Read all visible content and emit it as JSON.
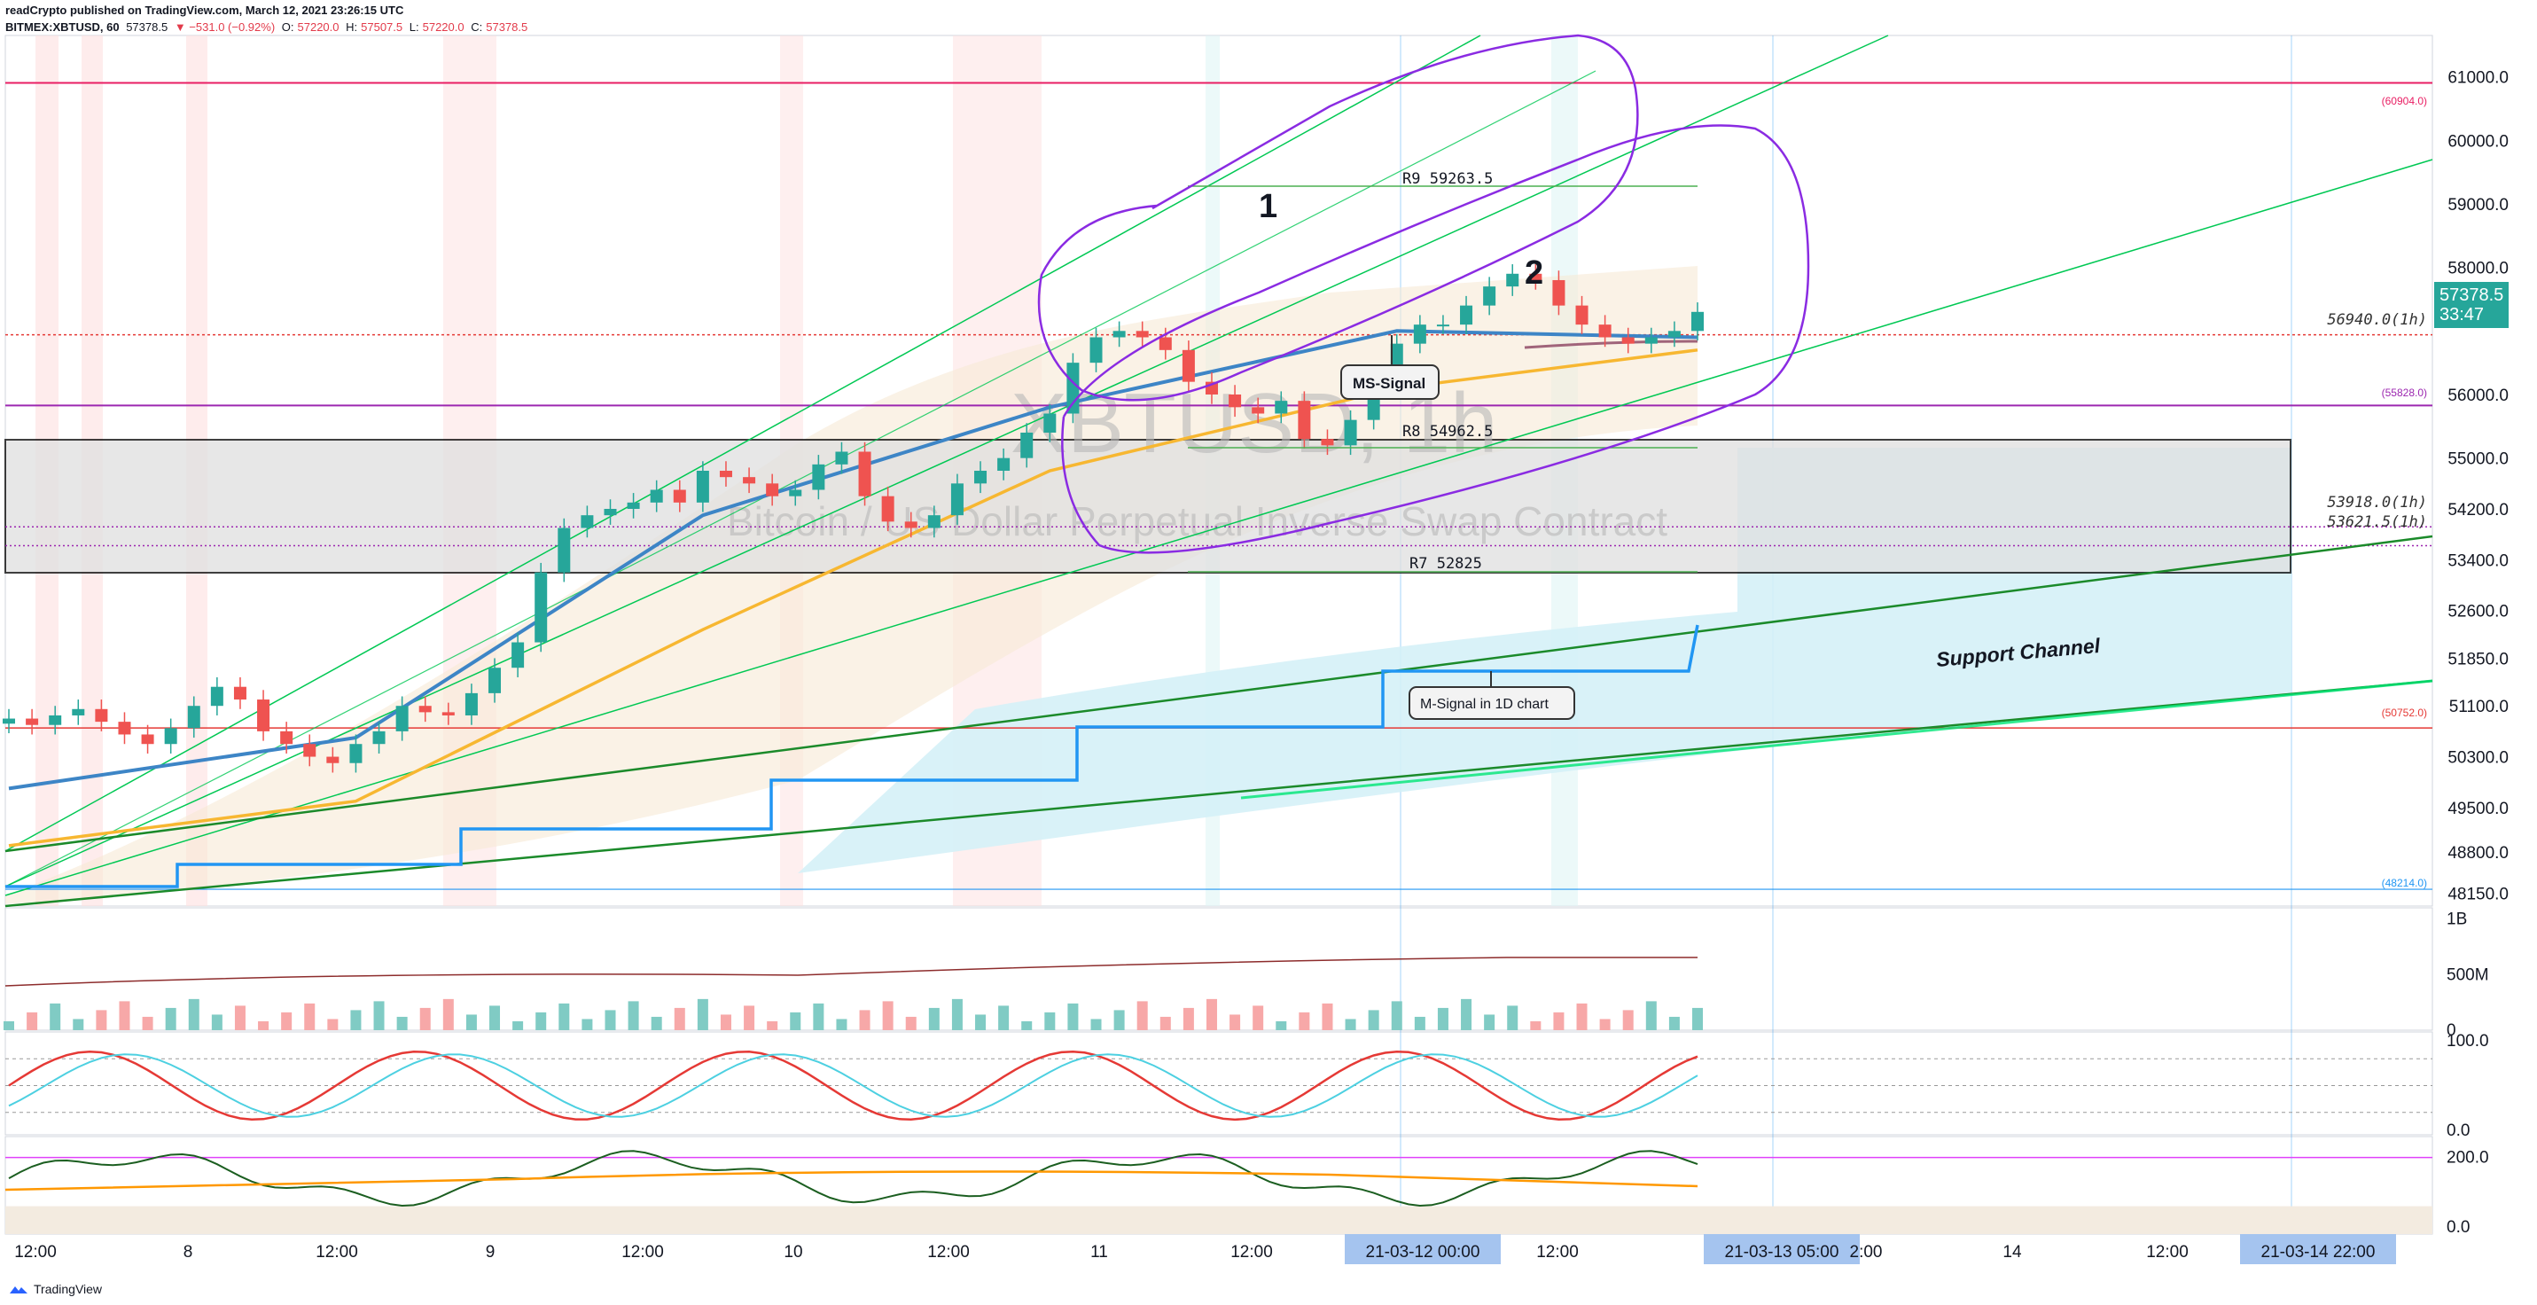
{
  "header": {
    "publisher_line": "readCrypto published on TradingView.com, March 12, 2021 23:26:15 UTC",
    "symbol": "BITMEX:XBTUSD, 60",
    "last": "57378.5",
    "change": "▼ −531.0 (−0.92%)",
    "open_label": "O:",
    "open": "57220.0",
    "high_label": "H:",
    "high": "57507.5",
    "low_label": "L:",
    "low": "57220.0",
    "close_label": "C:",
    "close": "57378.5"
  },
  "watermark": {
    "symbol": "XBTUSD, 1h",
    "description": "Bitcoin / US Dollar Perpetual Inverse Swap Contract"
  },
  "current_price": {
    "value": "57378.5",
    "countdown": "33:47"
  },
  "footer": {
    "brand": "TradingView"
  },
  "annotations": {
    "r9": "R9 59263.5",
    "r8": "R8 54962.5",
    "r7": "R7 52825",
    "ms_signal": "MS-Signal",
    "m_signal_1d": "M-Signal in 1D chart",
    "support_channel": "Support Channel",
    "label_1": "1",
    "label_2": "2"
  },
  "level_labels": {
    "l60904": "(60904.0)",
    "l56940": "56940.0(1h)",
    "l55828": "(55828.0)",
    "l53918": "53918.0(1h)",
    "l53621": "53621.5(1h)",
    "l50752": "(50752.0)",
    "l48214": "(48214.0)"
  },
  "colors": {
    "up": "#26a69a",
    "down": "#ef5350",
    "accent_teal": "#26a69a",
    "magenta": "#e91e63",
    "purple": "#9c27b0",
    "green_line": "#00c853",
    "dark_green": "#1b8a2a",
    "blue_signal": "#2196f3"
  },
  "chart_data": [
    {
      "type": "line",
      "panel": "price",
      "title": "XBTUSD, 1h",
      "y_ticks": [
        "61000.0",
        "60000.0",
        "59000.0",
        "58000.0",
        "57200.0",
        "56000.0",
        "55000.0",
        "54200.0",
        "53400.0",
        "52600.0",
        "51850.0",
        "51100.0",
        "50300.0",
        "49500.0",
        "48800.0",
        "48150.0"
      ],
      "x_ticks": [
        "12:00",
        "8",
        "12:00",
        "9",
        "12:00",
        "10",
        "12:00",
        "11",
        "12:00",
        "21-03-12  00:00",
        "12:00",
        "21-03-13  05:00",
        "2:00",
        "14",
        "12:00",
        "21-03-14  22:00"
      ],
      "ylim": [
        47950,
        61650
      ],
      "horizontal_levels": [
        60904,
        56940,
        55828,
        53918,
        53621.5,
        50752,
        48214
      ],
      "resistances": {
        "R9": 59263.5,
        "R8": 54962.5,
        "R7": 52825
      },
      "series": [
        {
          "name": "close",
          "x": [
            0,
            4,
            8,
            12,
            16,
            20,
            24,
            28,
            32,
            36,
            40,
            44,
            48,
            52,
            56,
            60,
            64,
            68,
            72,
            76,
            80,
            84,
            88,
            92,
            96,
            100,
            104,
            108,
            112,
            116,
            120,
            124,
            128,
            132,
            136,
            140,
            144,
            148,
            152,
            156,
            160,
            164,
            168,
            172,
            176,
            180,
            184,
            188,
            192,
            196,
            200,
            204,
            208,
            212,
            216,
            220,
            224,
            228,
            232,
            236,
            240,
            244,
            248,
            252,
            256,
            260,
            264,
            268,
            272,
            276,
            280,
            284,
            288,
            292
          ],
          "values": [
            50900,
            50800,
            50950,
            51050,
            50850,
            50650,
            50500,
            50750,
            51100,
            51400,
            51200,
            50700,
            50500,
            50300,
            50200,
            50500,
            50700,
            51100,
            51000,
            50950,
            51300,
            51700,
            52100,
            53200,
            53900,
            54100,
            54200,
            54300,
            54500,
            54300,
            54800,
            54700,
            54600,
            54400,
            54500,
            54900,
            55100,
            54400,
            54000,
            53900,
            54100,
            54600,
            54800,
            55000,
            55400,
            55700,
            56500,
            56900,
            57000,
            56900,
            56700,
            56200,
            56000,
            55800,
            55700,
            55900,
            55300,
            55200,
            55600,
            56200,
            56800,
            57100,
            57100,
            57400,
            57700,
            57900,
            57800,
            57400,
            57100,
            56900,
            56800,
            56900,
            57000,
            57300
          ]
        },
        {
          "name": "MS-Signal",
          "x": [
            0,
            60,
            120,
            180,
            240,
            292
          ],
          "values": [
            49800,
            50600,
            54100,
            55800,
            57000,
            56900
          ]
        },
        {
          "name": "M-Signal in 1D chart",
          "x": [
            0,
            132,
            180,
            225,
            240,
            292
          ],
          "values": [
            48700,
            48900,
            49700,
            50500,
            51300,
            51950
          ]
        }
      ]
    },
    {
      "type": "bar",
      "panel": "volume",
      "y_ticks": [
        "1B",
        "500M",
        "0"
      ],
      "ylim": [
        0,
        1100000000
      ]
    },
    {
      "type": "line",
      "panel": "stoch_rsi",
      "y_ticks": [
        "100.0",
        "0.0"
      ],
      "ylim": [
        -5,
        110
      ]
    },
    {
      "type": "line",
      "panel": "oscillator",
      "y_ticks": [
        "200.0",
        "0.0"
      ],
      "ylim": [
        -20,
        260
      ]
    }
  ]
}
